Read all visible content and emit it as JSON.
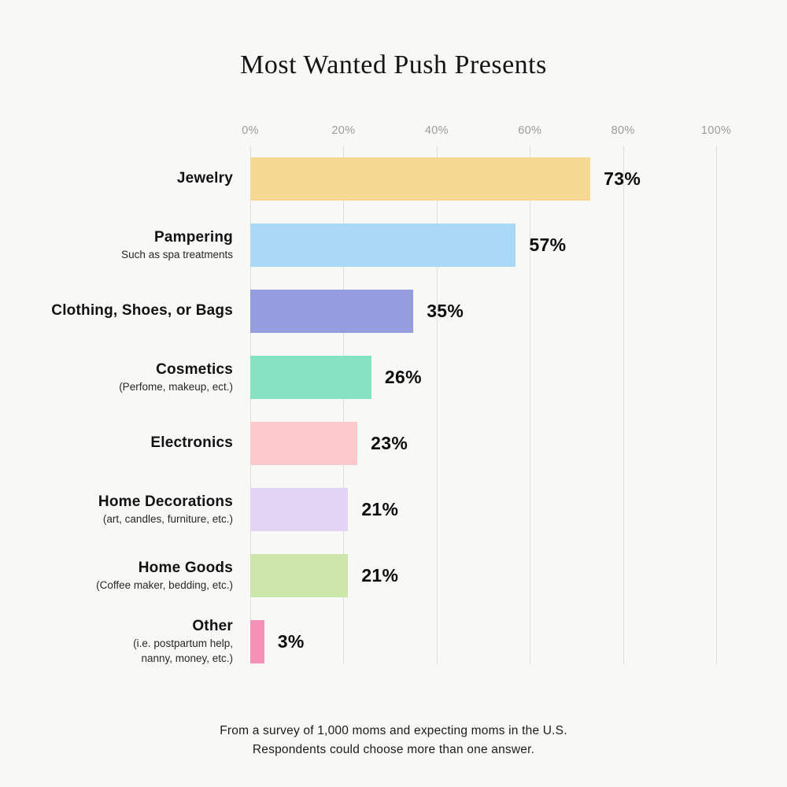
{
  "chart_data": {
    "type": "bar",
    "orientation": "horizontal",
    "title": "Most Wanted Push Presents",
    "x_axis": {
      "ticks": [
        "0%",
        "20%",
        "40%",
        "60%",
        "80%",
        "100%"
      ],
      "values": [
        0,
        20,
        40,
        60,
        80,
        100
      ],
      "max": 100,
      "grid": true
    },
    "legend": "none",
    "rows": [
      {
        "label": "Jewelry",
        "sublabel": "",
        "value": 73,
        "value_label": "73%",
        "color": "#F6DA94"
      },
      {
        "label": "Pampering",
        "sublabel": "Such as spa treatments",
        "value": 57,
        "value_label": "57%",
        "color": "#A9D9F7"
      },
      {
        "label": "Clothing, Shoes, or Bags",
        "sublabel": "",
        "value": 35,
        "value_label": "35%",
        "color": "#959CE0"
      },
      {
        "label": "Cosmetics",
        "sublabel": "(Perfome, makeup, ect.)",
        "value": 26,
        "value_label": "26%",
        "color": "#85E2C2"
      },
      {
        "label": "Electronics",
        "sublabel": "",
        "value": 23,
        "value_label": "23%",
        "color": "#FCC9CD"
      },
      {
        "label": "Home Decorations",
        "sublabel": "(art, candles, furniture, etc.)",
        "value": 21,
        "value_label": "21%",
        "color": "#E1D4F4"
      },
      {
        "label": "Home Goods",
        "sublabel": "(Coffee maker, bedding, etc.)",
        "value": 21,
        "value_label": "21%",
        "color": "#CDE7AA"
      },
      {
        "label": "Other",
        "sublabel": "(i.e. postpartum help,",
        "sublabel2": "nanny, money, etc.)",
        "value": 3,
        "value_label": "3%",
        "color": "#F690B7"
      }
    ],
    "footnote_line1": "From a survey of 1,000 moms and expecting moms in the U.S.",
    "footnote_line2": "Respondents could choose more than one answer."
  },
  "colors": {
    "background": "#F8F8F6",
    "gridline": "#DEDEDD",
    "axis_text": "#9C9C9C",
    "title_text": "#141414",
    "label_text": "#121212",
    "value_text": "#0d0d0d"
  }
}
